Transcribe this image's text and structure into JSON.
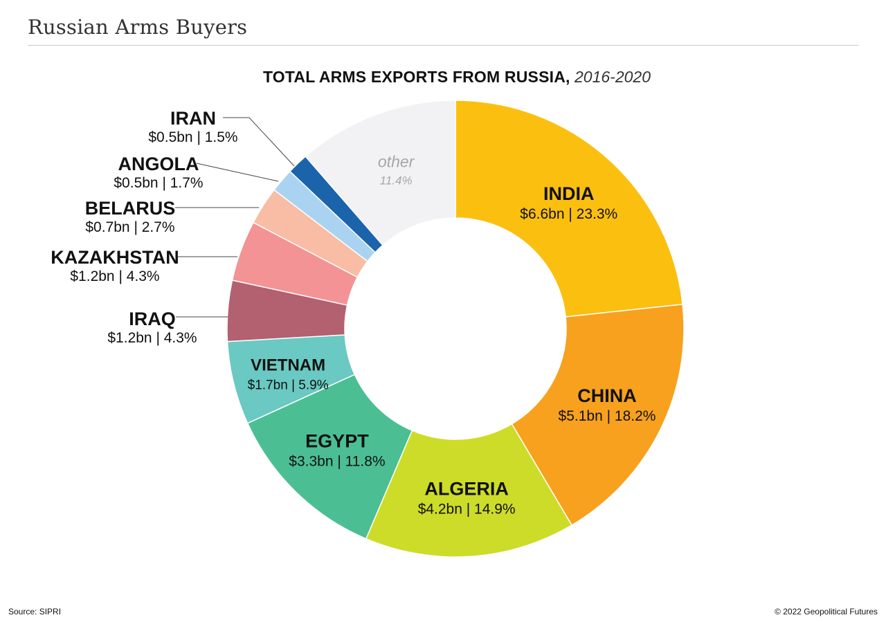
{
  "header": {
    "heading": "Russian Arms Buyers"
  },
  "footer": {
    "source": "Source: SIPRI",
    "copyright": "© 2022 Geopolitical Futures"
  },
  "chart_data": {
    "type": "pie",
    "variant": "donut",
    "title": "TOTAL ARMS EXPORTS FROM RUSSIA,",
    "subtitle": "2016-2020",
    "units": {
      "value": "$bn",
      "share": "%"
    },
    "slices": [
      {
        "key": "india",
        "label": "INDIA",
        "detail": "$6.6bn | 23.3%",
        "value_bn": 6.6,
        "percent": 23.3,
        "color": "#FBBF10",
        "label_placement": "inside"
      },
      {
        "key": "china",
        "label": "CHINA",
        "detail": "$5.1bn | 18.2%",
        "value_bn": 5.1,
        "percent": 18.2,
        "color": "#F7A11E",
        "label_placement": "inside"
      },
      {
        "key": "algeria",
        "label": "ALGERIA",
        "detail": "$4.2bn | 14.9%",
        "value_bn": 4.2,
        "percent": 14.9,
        "color": "#CDDC28",
        "label_placement": "inside"
      },
      {
        "key": "egypt",
        "label": "EGYPT",
        "detail": "$3.3bn | 11.8%",
        "value_bn": 3.3,
        "percent": 11.8,
        "color": "#4CBE94",
        "label_placement": "inside"
      },
      {
        "key": "vietnam",
        "label": "VIETNAM",
        "detail": "$1.7bn | 5.9%",
        "value_bn": 1.7,
        "percent": 5.9,
        "color": "#6AC9C2",
        "label_placement": "inside"
      },
      {
        "key": "iraq",
        "label": "IRAQ",
        "detail": "$1.2bn | 4.3%",
        "value_bn": 1.2,
        "percent": 4.3,
        "color": "#B36071",
        "label_placement": "outside"
      },
      {
        "key": "kazakhstan",
        "label": "KAZAKHSTAN",
        "detail": "$1.2bn | 4.3%",
        "value_bn": 1.2,
        "percent": 4.3,
        "color": "#F49395",
        "label_placement": "outside"
      },
      {
        "key": "belarus",
        "label": "BELARUS",
        "detail": "$0.7bn | 2.7%",
        "value_bn": 0.7,
        "percent": 2.7,
        "color": "#F9BCA5",
        "label_placement": "outside"
      },
      {
        "key": "angola",
        "label": "ANGOLA",
        "detail": "$0.5bn | 1.7%",
        "value_bn": 0.5,
        "percent": 1.7,
        "color": "#A9D3F1",
        "label_placement": "outside"
      },
      {
        "key": "iran",
        "label": "IRAN",
        "detail": "$0.5bn | 1.5%",
        "value_bn": 0.5,
        "percent": 1.5,
        "color": "#1B64AC",
        "label_placement": "outside"
      },
      {
        "key": "other",
        "label": "other",
        "detail": "11.4%",
        "value_bn": null,
        "percent": 11.4,
        "color": "#F2F2F4",
        "label_placement": "inside",
        "label_style": "muted-italic"
      }
    ]
  }
}
